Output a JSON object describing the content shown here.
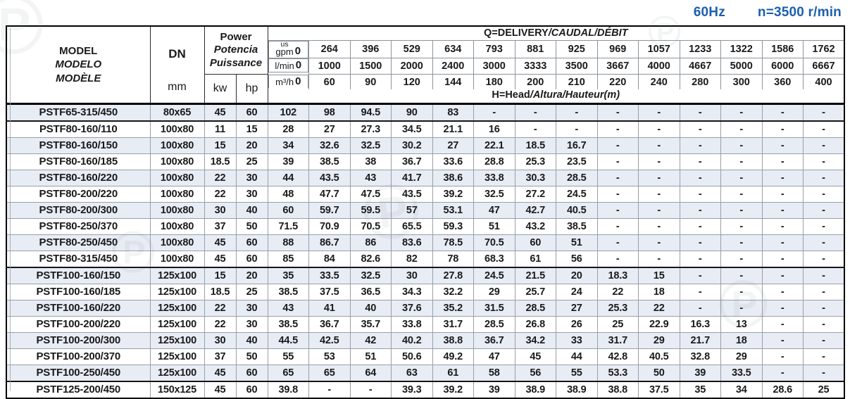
{
  "page": {
    "frequency_label": "60Hz",
    "speed_label": "n=3500 r/min",
    "accent_color": "#1d5fae",
    "shaded_row_color": "#e8ecf4",
    "watermark_glyph": "℗"
  },
  "table": {
    "header": {
      "model_lines": [
        "MODEL",
        "MODELO",
        "MODÈLE"
      ],
      "dn_label": "DN",
      "dn_unit": "mm",
      "power_lines": [
        "Power",
        "Potencia",
        "Puissance"
      ],
      "kw_label": "kw",
      "hp_label": "hp",
      "delivery_label_main": "Q=DELIVERY",
      "delivery_label_italic": "/CAUDAL/DÉBIT",
      "head_label_main": "H=Head",
      "head_label_italic": "/Altura/Hauteur(m)",
      "flow_rows": [
        {
          "unit_top": "us",
          "unit": "gpm",
          "values": [
            "0",
            "264",
            "396",
            "529",
            "634",
            "793",
            "881",
            "925",
            "969",
            "1057",
            "1233",
            "1322",
            "1586",
            "1762"
          ]
        },
        {
          "unit": "l/min",
          "values": [
            "0",
            "1000",
            "1500",
            "2000",
            "2400",
            "3000",
            "3333",
            "3500",
            "3667",
            "4000",
            "4667",
            "5000",
            "6000",
            "6667"
          ]
        },
        {
          "unit": "m³/h",
          "values": [
            "0",
            "60",
            "90",
            "120",
            "144",
            "180",
            "200",
            "210",
            "220",
            "240",
            "280",
            "300",
            "360",
            "400"
          ]
        }
      ]
    },
    "rows": [
      {
        "model": "PSTF65-315/450",
        "dn": "80x65",
        "kw": "45",
        "hp": "60",
        "shaded": true,
        "group_end": true,
        "heads": [
          "102",
          "98",
          "94.5",
          "90",
          "83",
          "-",
          "-",
          "-",
          "-",
          "-",
          "-",
          "-",
          "-",
          "-"
        ]
      },
      {
        "model": "PSTF80-160/110",
        "dn": "100x80",
        "kw": "11",
        "hp": "15",
        "shaded": false,
        "group_end": false,
        "heads": [
          "28",
          "27",
          "27.3",
          "34.5",
          "21.1",
          "16",
          "-",
          "-",
          "-",
          "-",
          "-",
          "-",
          "-",
          "-"
        ]
      },
      {
        "model": "PSTF80-160/150",
        "dn": "100x80",
        "kw": "15",
        "hp": "20",
        "shaded": true,
        "group_end": false,
        "heads": [
          "34",
          "32.6",
          "32.5",
          "30.2",
          "27",
          "22.1",
          "18.5",
          "16.7",
          "-",
          "-",
          "-",
          "-",
          "-",
          "-"
        ]
      },
      {
        "model": "PSTF80-160/185",
        "dn": "100x80",
        "kw": "18.5",
        "hp": "25",
        "shaded": false,
        "group_end": false,
        "heads": [
          "39",
          "38.5",
          "38",
          "36.7",
          "33.6",
          "28.8",
          "25.3",
          "23.5",
          "-",
          "-",
          "-",
          "-",
          "-",
          "-"
        ]
      },
      {
        "model": "PSTF80-160/220",
        "dn": "100x80",
        "kw": "22",
        "hp": "30",
        "shaded": true,
        "group_end": false,
        "heads": [
          "44",
          "43.5",
          "43",
          "41.7",
          "38.6",
          "33.8",
          "30.3",
          "28.5",
          "-",
          "-",
          "-",
          "-",
          "-",
          "-"
        ]
      },
      {
        "model": "PSTF80-200/220",
        "dn": "100x80",
        "kw": "22",
        "hp": "30",
        "shaded": false,
        "group_end": false,
        "heads": [
          "48",
          "47.7",
          "47.5",
          "43.5",
          "39.2",
          "32.5",
          "27.2",
          "24.5",
          "-",
          "-",
          "-",
          "-",
          "-",
          "-"
        ]
      },
      {
        "model": "PSTF80-200/300",
        "dn": "100x80",
        "kw": "30",
        "hp": "40",
        "shaded": true,
        "group_end": false,
        "heads": [
          "60",
          "59.7",
          "59.5",
          "57",
          "53.1",
          "47",
          "42.7",
          "40.5",
          "-",
          "-",
          "-",
          "-",
          "-",
          "-"
        ]
      },
      {
        "model": "PSTF80-250/370",
        "dn": "100x80",
        "kw": "37",
        "hp": "50",
        "shaded": false,
        "group_end": false,
        "heads": [
          "71.5",
          "70.9",
          "70.5",
          "65.5",
          "59.3",
          "51",
          "43.2",
          "38.5",
          "-",
          "-",
          "-",
          "-",
          "-",
          "-"
        ]
      },
      {
        "model": "PSTF80-250/450",
        "dn": "100x80",
        "kw": "45",
        "hp": "60",
        "shaded": true,
        "group_end": false,
        "heads": [
          "88",
          "86.7",
          "86",
          "83.6",
          "78.5",
          "70.5",
          "60",
          "51",
          "-",
          "-",
          "-",
          "-",
          "-",
          "-"
        ]
      },
      {
        "model": "PSTF80-315/450",
        "dn": "100x80",
        "kw": "45",
        "hp": "60",
        "shaded": false,
        "group_end": true,
        "heads": [
          "85",
          "84",
          "82.6",
          "82",
          "78",
          "68.3",
          "61",
          "56",
          "-",
          "-",
          "-",
          "-",
          "-",
          "-"
        ]
      },
      {
        "model": "PSTF100-160/150",
        "dn": "125x100",
        "kw": "15",
        "hp": "20",
        "shaded": true,
        "group_end": false,
        "heads": [
          "35",
          "33.5",
          "32.5",
          "30",
          "27.8",
          "24.5",
          "21.5",
          "20",
          "18.3",
          "15",
          "-",
          "-",
          "-",
          "-"
        ]
      },
      {
        "model": "PSTF100-160/185",
        "dn": "125x100",
        "kw": "18.5",
        "hp": "25",
        "shaded": false,
        "group_end": false,
        "heads": [
          "38.5",
          "37.5",
          "36.5",
          "34.3",
          "32.2",
          "29",
          "25.7",
          "24",
          "22",
          "18",
          "-",
          "-",
          "-",
          "-"
        ]
      },
      {
        "model": "PSTF100-160/220",
        "dn": "125x100",
        "kw": "22",
        "hp": "30",
        "shaded": true,
        "group_end": false,
        "heads": [
          "43",
          "41",
          "40",
          "37.6",
          "35.2",
          "31.5",
          "28.5",
          "27",
          "25.3",
          "22",
          "-",
          "-",
          "-",
          "-"
        ]
      },
      {
        "model": "PSTF100-200/220",
        "dn": "125x100",
        "kw": "22",
        "hp": "30",
        "shaded": false,
        "group_end": false,
        "heads": [
          "38.5",
          "36.7",
          "35.7",
          "33.8",
          "31.7",
          "28.5",
          "26.8",
          "26",
          "25",
          "22.9",
          "16.3",
          "13",
          "-",
          "-"
        ]
      },
      {
        "model": "PSTF100-200/300",
        "dn": "125x100",
        "kw": "30",
        "hp": "40",
        "shaded": true,
        "group_end": false,
        "heads": [
          "44.5",
          "42.5",
          "42",
          "40.2",
          "38.8",
          "36.7",
          "34.2",
          "33",
          "31.7",
          "29",
          "21.7",
          "18",
          "-",
          "-"
        ]
      },
      {
        "model": "PSTF100-200/370",
        "dn": "125x100",
        "kw": "37",
        "hp": "50",
        "shaded": false,
        "group_end": false,
        "heads": [
          "55",
          "53",
          "51",
          "50.6",
          "49.2",
          "47",
          "45",
          "44",
          "42.8",
          "40.5",
          "32.8",
          "29",
          "-",
          "-"
        ]
      },
      {
        "model": "PSTF100-250/450",
        "dn": "125x100",
        "kw": "45",
        "hp": "60",
        "shaded": true,
        "group_end": true,
        "heads": [
          "65",
          "65",
          "64",
          "63",
          "61",
          "58",
          "56",
          "55",
          "53.3",
          "50",
          "39",
          "33.5",
          "-",
          "-"
        ]
      },
      {
        "model": "PSTF125-200/450",
        "dn": "150x125",
        "kw": "45",
        "hp": "60",
        "shaded": false,
        "group_end": false,
        "heads": [
          "39.8",
          "-",
          "-",
          "39.3",
          "39.2",
          "39",
          "38.9",
          "38.9",
          "38.8",
          "37.5",
          "35",
          "34",
          "28.6",
          "25"
        ]
      }
    ]
  }
}
